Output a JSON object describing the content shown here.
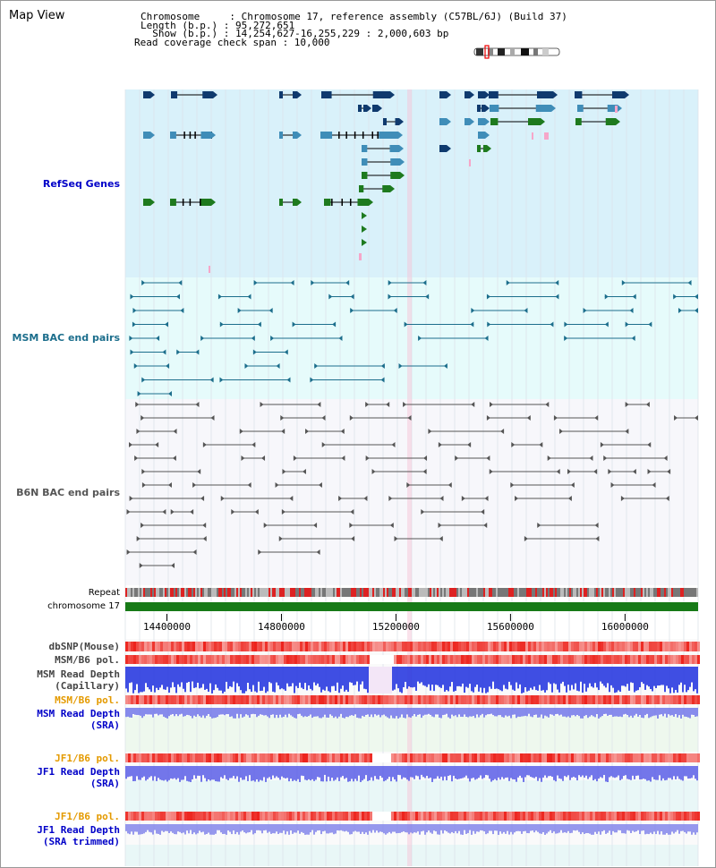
{
  "page_title": "Map View",
  "header": {
    "chromosome_label": "Chromosome     : Chromosome 17, reference assembly (C57BL/6J) (Build 37)",
    "length_label": "Length (b.p.) : 95,272,651",
    "show_label": "  Show (b.p.) : 14,254,627-16,255,229 : 2,000,603 bp",
    "coverage_label": "Read coverage check span : 10,000"
  },
  "tracks": {
    "refseq": "RefSeq Genes",
    "msm_bac": "MSM BAC end pairs",
    "b6n_bac": "B6N BAC end pairs",
    "repeat": "Repeat",
    "chromosome": "chromosome 17",
    "dbsnp": "dbSNP(Mouse)",
    "msm_b6_pol_1": "MSM/B6 pol.",
    "msm_read_depth_cap_1": "MSM Read Depth",
    "msm_read_depth_cap_2": "(Capillary)",
    "msm_b6_pol_2": "MSM/B6 pol.",
    "msm_read_depth_sra_1": "MSM Read Depth",
    "msm_read_depth_sra_2": "(SRA)",
    "jf1_b6_pol_1": "JF1/B6 pol.",
    "jf1_read_depth_sra_1": "JF1 Read Depth",
    "jf1_read_depth_sra_2": "(SRA)",
    "jf1_b6_pol_2": "JF1/B6 pol.",
    "jf1_read_depth_trim_1": "JF1 Read Depth",
    "jf1_read_depth_trim_2": "(SRA trimmed)"
  },
  "axis": {
    "ticks": [
      "14400000",
      "14800000",
      "15200000",
      "15600000",
      "16000000"
    ],
    "tick_values": [
      14400000,
      14800000,
      15200000,
      15600000,
      16000000
    ],
    "start": 14254627,
    "end": 16255229
  },
  "colors": {
    "refseq_bg": "#d9f1fa",
    "msm_bg": "#e6fbfb",
    "b6n_bg": "#f7f7fb",
    "gene_dark": "#0f3a6e",
    "gene_mid": "#3f8db8",
    "gene_green": "#1e7a1e",
    "msm_line": "#1c6e8c",
    "b6n_line": "#555555",
    "repeat_red": "#dd2222",
    "chrom_green": "#177a17",
    "depth_blue": "#2a3be0",
    "label_blue": "#0000c8",
    "label_orange": "#e49a00",
    "label_teal": "#1c6e8c",
    "label_gray": "#444444"
  }
}
